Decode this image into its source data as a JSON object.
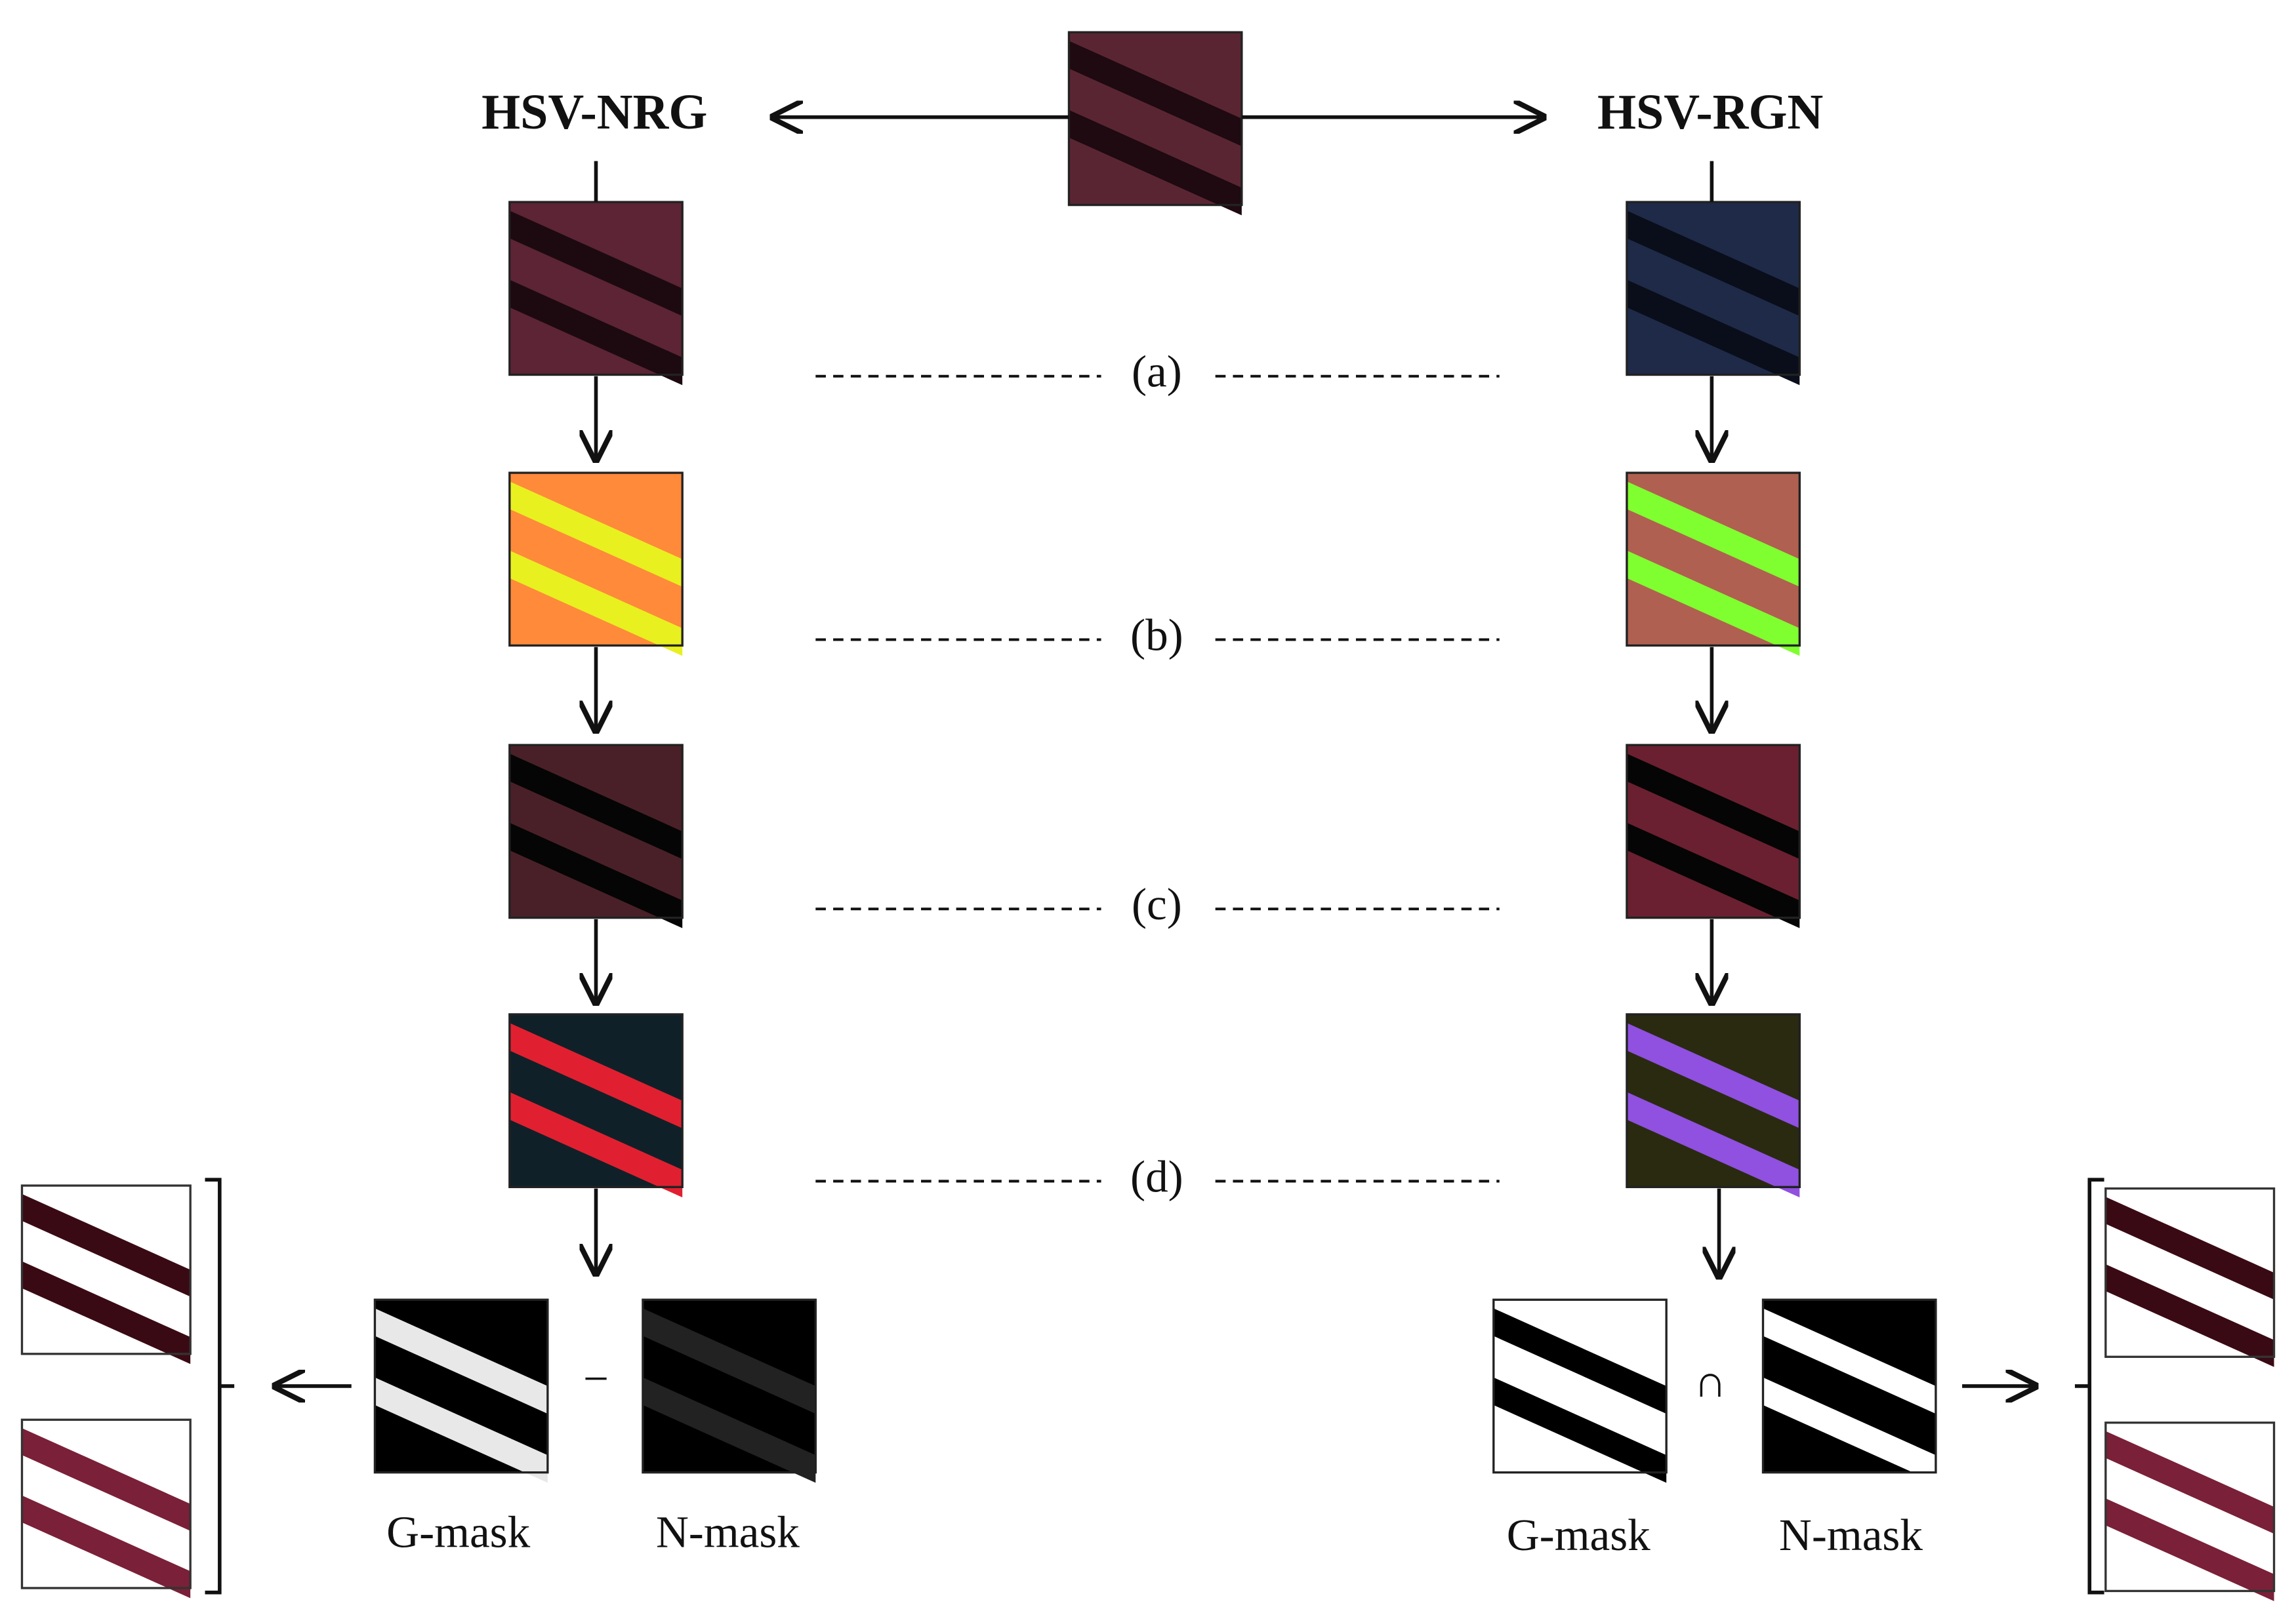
{
  "header": {
    "left_label": "HSV-NRG",
    "right_label": "HSV-RGN"
  },
  "rows": [
    {
      "label": "(a)"
    },
    {
      "label": "(b)"
    },
    {
      "label": "(c)"
    },
    {
      "label": "(d)"
    }
  ],
  "left_masks": {
    "operator": "−",
    "labels": [
      "G-mask",
      "N-mask"
    ]
  },
  "right_masks": {
    "operator": "∩",
    "labels": [
      "G-mask",
      "N-mask"
    ]
  }
}
